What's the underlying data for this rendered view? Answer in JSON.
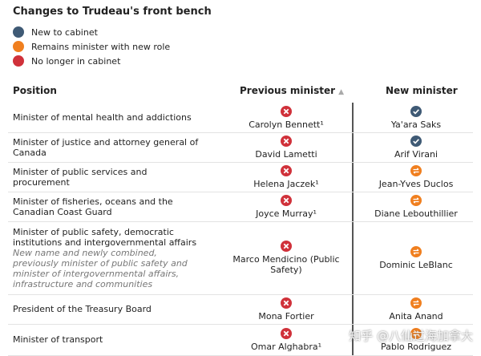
{
  "header": {
    "title": "Changes to Trudeau's front bench"
  },
  "legend": [
    "New to cabinet",
    "Remains minister with new role",
    "No longer in cabinet"
  ],
  "table": {
    "columns": [
      "Position",
      "Previous minister",
      "New minister"
    ],
    "rows": [
      {
        "position": "Minister of mental health and addictions",
        "previous": "Carolyn Bennett¹",
        "new": "Ya'ara Saks"
      },
      {
        "position": "Minister of justice and attorney general of Canada",
        "previous": "David Lametti",
        "new": "Arif Virani"
      },
      {
        "position": "Minister of public services and procurement",
        "previous": "Helena Jaczek¹",
        "new": "Jean-Yves Duclos"
      },
      {
        "position": "Minister of fisheries, oceans and the Canadian Coast Guard",
        "previous": "Joyce Murray¹",
        "new": "Diane Lebouthillier"
      },
      {
        "position": "Minister of public safety, democratic institutions and intergovernmental affairs",
        "note": "New name and newly combined, previously minister of public safety and minister of intergovernmental affairs, infrastructure and communities",
        "previous": "Marco Mendicino (Public Safety)",
        "new": "Dominic LeBlanc"
      },
      {
        "position": "President of the Treasury Board",
        "previous": "Mona Fortier",
        "new": "Anita Anand"
      },
      {
        "position": "Minister of transport",
        "previous": "Omar Alghabra¹",
        "new": "Pablo Rodriguez"
      }
    ]
  },
  "watermark": "知乎 @八仙过海加拿大"
}
